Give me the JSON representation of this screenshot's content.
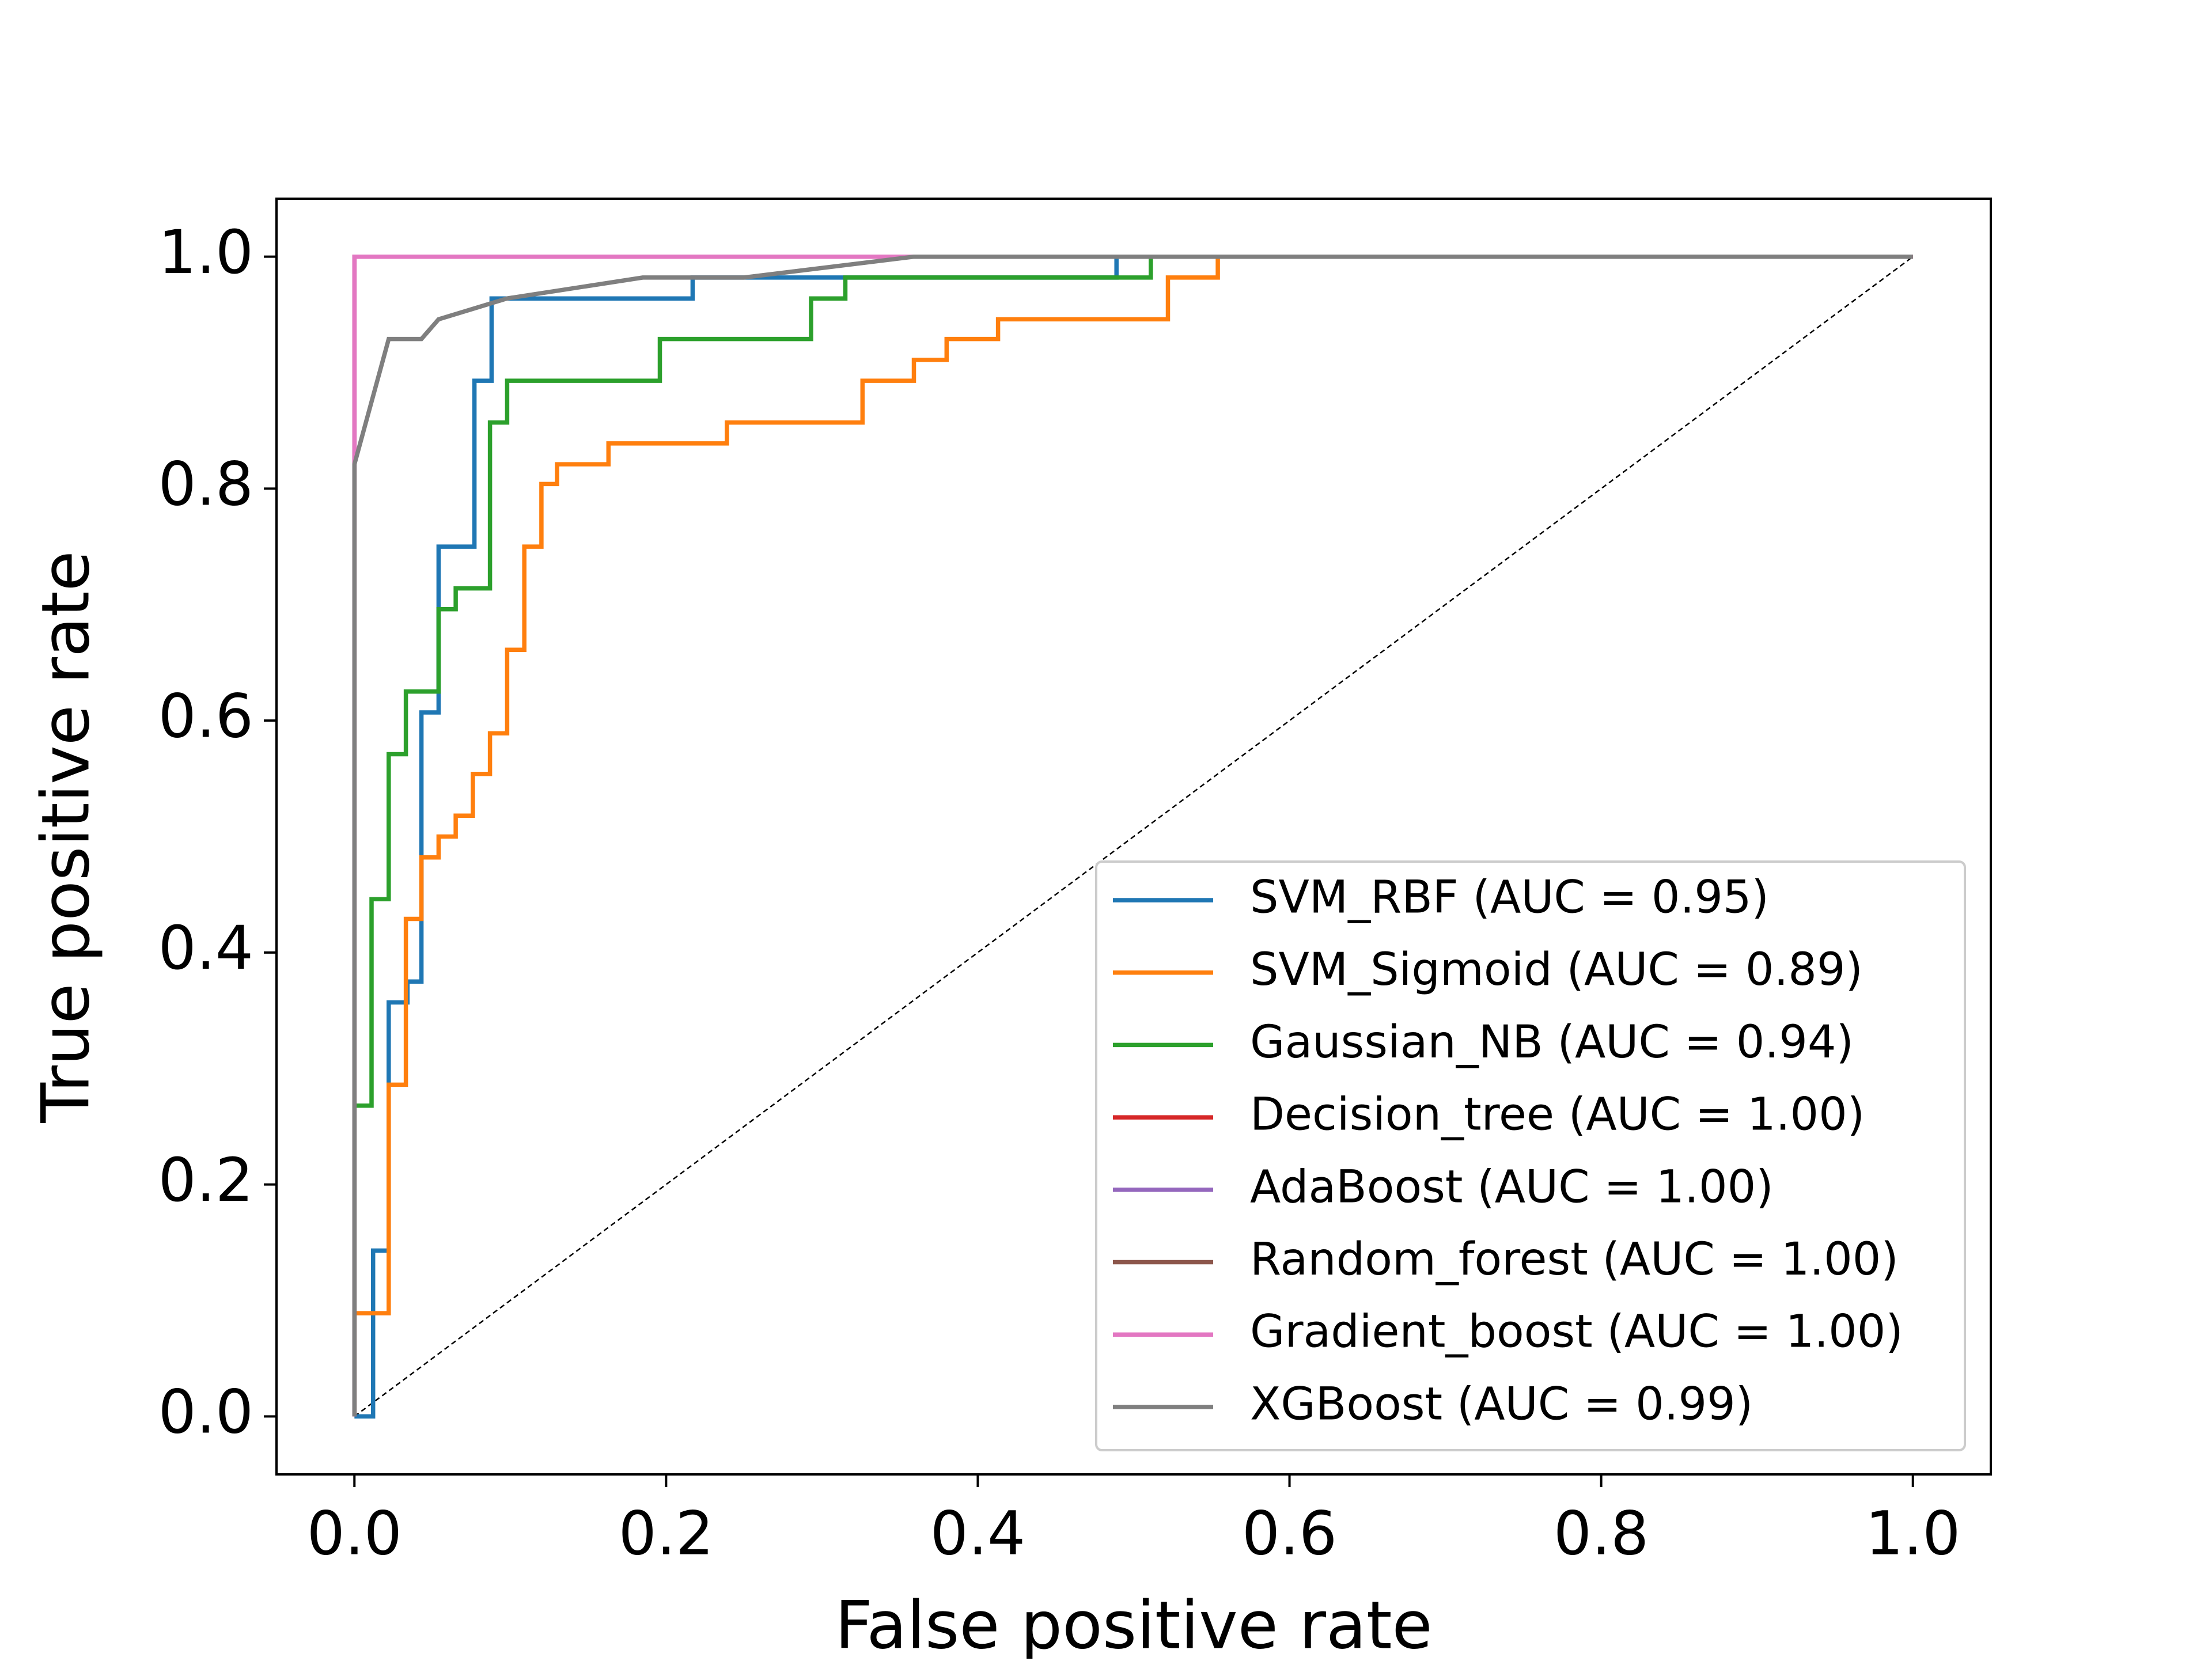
{
  "chart_data": {
    "type": "line",
    "xlabel": "False positive rate",
    "ylabel": "True positive rate",
    "xlim": [
      -0.05,
      1.05
    ],
    "ylim": [
      -0.05,
      1.05
    ],
    "xticks": [
      {
        "value": 0,
        "label": "0.0"
      },
      0.2,
      0.4,
      0.6,
      0.8,
      {
        "value": 1,
        "label": "1.0"
      }
    ],
    "yticks": [
      {
        "value": 0,
        "label": "0.0"
      },
      0.2,
      0.4,
      0.6,
      0.8,
      {
        "value": 1,
        "label": "1.0"
      }
    ],
    "legend": "lower right",
    "reference_line": {
      "x": [
        0,
        1
      ],
      "values": [
        0,
        1
      ],
      "color": "#000000"
    },
    "series": [
      {
        "name": "SVM_RBF (AUC = 0.95)",
        "color": "#1f77b4",
        "x": [
          0,
          0.012,
          0.012,
          0.022,
          0.022,
          0.034,
          0.034,
          0.043,
          0.043,
          0.054,
          0.054,
          0.077,
          0.077,
          0.088,
          0.088,
          0.217,
          0.217,
          0.489,
          0.489,
          1
        ],
        "values": [
          0,
          0,
          0.143,
          0.143,
          0.357,
          0.357,
          0.375,
          0.375,
          0.607,
          0.607,
          0.75,
          0.75,
          0.893,
          0.893,
          0.964,
          0.964,
          0.982,
          0.982,
          1,
          1
        ]
      },
      {
        "name": "SVM_Sigmoid (AUC = 0.89)",
        "color": "#ff7f0e",
        "x": [
          0,
          0,
          0.022,
          0.022,
          0.033,
          0.033,
          0.043,
          0.043,
          0.054,
          0.054,
          0.065,
          0.065,
          0.076,
          0.076,
          0.087,
          0.087,
          0.098,
          0.098,
          0.109,
          0.109,
          0.12,
          0.12,
          0.13,
          0.13,
          0.163,
          0.163,
          0.239,
          0.239,
          0.326,
          0.326,
          0.359,
          0.359,
          0.38,
          0.38,
          0.413,
          0.413,
          0.522,
          0.522,
          0.554,
          0.554,
          1
        ],
        "values": [
          0,
          0.089,
          0.089,
          0.286,
          0.286,
          0.429,
          0.429,
          0.482,
          0.482,
          0.5,
          0.5,
          0.518,
          0.518,
          0.554,
          0.554,
          0.589,
          0.589,
          0.661,
          0.661,
          0.75,
          0.75,
          0.804,
          0.804,
          0.821,
          0.821,
          0.839,
          0.839,
          0.857,
          0.857,
          0.893,
          0.893,
          0.911,
          0.911,
          0.929,
          0.929,
          0.946,
          0.946,
          0.982,
          0.982,
          1,
          1
        ]
      },
      {
        "name": "Gaussian_NB (AUC = 0.94)",
        "color": "#2ca02c",
        "x": [
          0,
          0,
          0.011,
          0.011,
          0.022,
          0.022,
          0.033,
          0.033,
          0.054,
          0.054,
          0.065,
          0.065,
          0.087,
          0.087,
          0.098,
          0.098,
          0.196,
          0.196,
          0.293,
          0.293,
          0.315,
          0.315,
          0.511,
          0.511,
          1
        ],
        "values": [
          0,
          0.268,
          0.268,
          0.446,
          0.446,
          0.571,
          0.571,
          0.625,
          0.625,
          0.696,
          0.696,
          0.714,
          0.714,
          0.857,
          0.857,
          0.893,
          0.893,
          0.929,
          0.929,
          0.964,
          0.964,
          0.982,
          0.982,
          1,
          1
        ]
      },
      {
        "name": "Decision_tree (AUC = 1.00)",
        "color": "#d62728",
        "x": [
          0,
          0,
          1
        ],
        "values": [
          0,
          1,
          1
        ]
      },
      {
        "name": "AdaBoost (AUC = 1.00)",
        "color": "#9467bd",
        "x": [
          0,
          0,
          1
        ],
        "values": [
          0,
          1,
          1
        ]
      },
      {
        "name": "Random_forest (AUC = 1.00)",
        "color": "#8c564b",
        "x": [
          0,
          0,
          1
        ],
        "values": [
          0,
          1,
          1
        ]
      },
      {
        "name": "Gradient_boost (AUC = 1.00)",
        "color": "#e377c2",
        "x": [
          0,
          0,
          1
        ],
        "values": [
          0,
          1,
          1
        ]
      },
      {
        "name": "XGBoost (AUC = 0.99)",
        "color": "#7f7f7f",
        "x": [
          0,
          0,
          0.022,
          0.043,
          0.054,
          0.098,
          0.185,
          0.25,
          0.359,
          1
        ],
        "values": [
          0,
          0.821,
          0.929,
          0.929,
          0.946,
          0.964,
          0.982,
          0.982,
          1,
          1
        ]
      }
    ]
  }
}
